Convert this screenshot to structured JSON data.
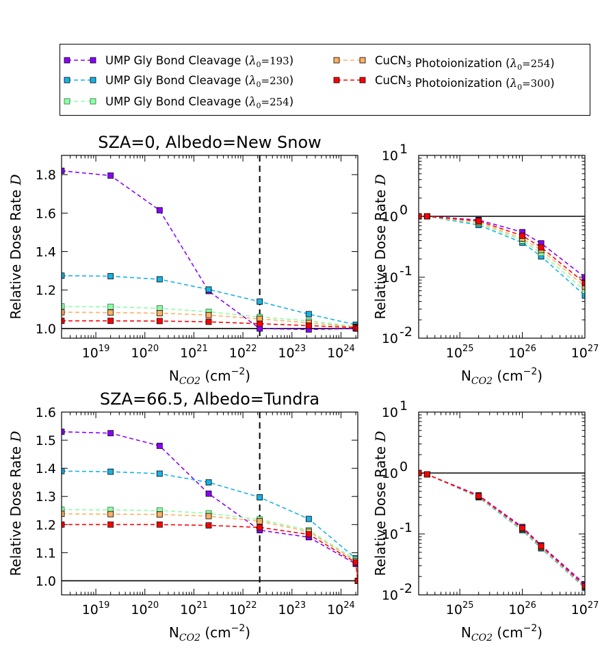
{
  "series": [
    {
      "name": "UMP Gly Bond Cleavage",
      "lambda": "193",
      "color": "#8B00FF",
      "light": false
    },
    {
      "name": "UMP Gly Bond Cleavage",
      "lambda": "230",
      "color": "#17B2E6",
      "light": false
    },
    {
      "name": "UMP Gly Bond Cleavage",
      "lambda": "254",
      "color": "#8CFFA8",
      "light": true
    },
    {
      "name": "CuCN3 Photoionization",
      "lambda": "254",
      "color": "#FFB062",
      "light": false
    },
    {
      "name": "CuCN3 Photoionization",
      "lambda": "300",
      "color": "#FF0000",
      "light": false
    }
  ],
  "labels": {
    "ylabel": "Relative Dose Rate",
    "ylabel_sym": "D",
    "xlabel_main": "N",
    "xlabel_sub": "CO2",
    "xlabel_unit": "(cm",
    "xlabel_exp": "−2",
    "xlabel_close": ")",
    "lambda_sym": "λ",
    "lambda_sub": "0",
    "eq": "=",
    "log_base": "10"
  },
  "chart_data": [
    {
      "id": "top-left",
      "type": "line",
      "title": "SZA=0, Albedo=New Snow",
      "xscale": "log",
      "xlim": [
        2e+18,
        2.2e+24
      ],
      "ylim": [
        0.95,
        1.9
      ],
      "yticks": [
        "1.0",
        "1.2",
        "1.4",
        "1.6",
        "1.8"
      ],
      "ytick_values": [
        1.0,
        1.2,
        1.4,
        1.6,
        1.8
      ],
      "xtick_exps": [
        "19",
        "20",
        "21",
        "22",
        "23",
        "24"
      ],
      "xtick_values": [
        1e+19,
        1e+20,
        1e+21,
        1e+22,
        1e+23,
        1e+24
      ],
      "hline": 1.0,
      "vline": 2.2e+22,
      "x": [
        2e+18,
        2e+19,
        2e+20,
        2e+21,
        2.2e+22,
        2.2e+23,
        2e+24,
        2.2e+24
      ],
      "values": [
        [
          1.82,
          1.795,
          1.615,
          1.195,
          1.0,
          0.995,
          1.0,
          1.0
        ],
        [
          1.275,
          1.272,
          1.256,
          1.203,
          1.14,
          1.075,
          1.02,
          1.0
        ],
        [
          1.115,
          1.113,
          1.105,
          1.087,
          1.06,
          1.04,
          1.01,
          1.0
        ],
        [
          1.085,
          1.083,
          1.08,
          1.07,
          1.05,
          1.03,
          1.008,
          1.0
        ],
        [
          1.04,
          1.04,
          1.039,
          1.035,
          1.025,
          1.015,
          1.005,
          1.0
        ]
      ]
    },
    {
      "id": "top-right",
      "type": "line",
      "xscale": "log",
      "yscale": "log",
      "xlim": [
        2.2e+24,
        1e+27
      ],
      "ylim": [
        0.01,
        10
      ],
      "yticks_exp": [
        "-2",
        "-1",
        "0",
        "1"
      ],
      "ytick_values": [
        0.01,
        0.1,
        1,
        10
      ],
      "xtick_exps": [
        "25",
        "26",
        "27"
      ],
      "xtick_values": [
        1e+25,
        1e+26,
        1e+27
      ],
      "hline": 1.0,
      "x": [
        2.2e+24,
        3e+24,
        2e+25,
        1e+26,
        2e+26,
        1e+27
      ],
      "values": [
        [
          1.0,
          1.0,
          0.87,
          0.55,
          0.36,
          0.1
        ],
        [
          1.0,
          1.0,
          0.72,
          0.37,
          0.22,
          0.05
        ],
        [
          1.0,
          1.0,
          0.77,
          0.4,
          0.25,
          0.06
        ],
        [
          1.0,
          1.0,
          0.8,
          0.43,
          0.28,
          0.07
        ],
        [
          1.0,
          1.0,
          0.84,
          0.48,
          0.31,
          0.08
        ]
      ]
    },
    {
      "id": "bottom-left",
      "type": "line",
      "title": "SZA=66.5, Albedo=Tundra",
      "xscale": "log",
      "xlim": [
        2e+18,
        2.2e+24
      ],
      "ylim": [
        0.95,
        1.6
      ],
      "yticks": [
        "1.0",
        "1.1",
        "1.2",
        "1.3",
        "1.4",
        "1.5",
        "1.6"
      ],
      "ytick_values": [
        1.0,
        1.1,
        1.2,
        1.3,
        1.4,
        1.5,
        1.6
      ],
      "xtick_exps": [
        "19",
        "20",
        "21",
        "22",
        "23",
        "24"
      ],
      "xtick_values": [
        1e+19,
        1e+20,
        1e+21,
        1e+22,
        1e+23,
        1e+24
      ],
      "hline": 1.0,
      "vline": 2.2e+22,
      "x": [
        2e+18,
        2e+19,
        2e+20,
        2e+21,
        2.2e+22,
        2.2e+23,
        2e+24,
        2.2e+24
      ],
      "values": [
        [
          1.53,
          1.525,
          1.48,
          1.31,
          1.18,
          1.155,
          1.06,
          1.0
        ],
        [
          1.39,
          1.388,
          1.381,
          1.35,
          1.297,
          1.22,
          1.08,
          1.0
        ],
        [
          1.253,
          1.252,
          1.25,
          1.24,
          1.218,
          1.18,
          1.075,
          1.0
        ],
        [
          1.238,
          1.237,
          1.236,
          1.23,
          1.212,
          1.175,
          1.07,
          1.0
        ],
        [
          1.2,
          1.2,
          1.2,
          1.197,
          1.19,
          1.165,
          1.065,
          1.0
        ]
      ]
    },
    {
      "id": "bottom-right",
      "type": "line",
      "xscale": "log",
      "yscale": "log",
      "xlim": [
        2.2e+24,
        1e+27
      ],
      "ylim": [
        0.01,
        10
      ],
      "yticks_exp": [
        "-2",
        "-1",
        "0",
        "1"
      ],
      "ytick_values": [
        0.01,
        0.1,
        1,
        10
      ],
      "xtick_exps": [
        "25",
        "26",
        "27"
      ],
      "xtick_values": [
        1e+25,
        1e+26,
        1e+27
      ],
      "hline": 1.0,
      "x": [
        2.2e+24,
        3e+24,
        2e+25,
        1e+26,
        2e+26,
        1e+27
      ],
      "values": [
        [
          1.0,
          0.95,
          0.43,
          0.13,
          0.065,
          0.015
        ],
        [
          1.0,
          0.95,
          0.4,
          0.115,
          0.058,
          0.013
        ],
        [
          1.0,
          0.95,
          0.41,
          0.12,
          0.06,
          0.0135
        ],
        [
          1.0,
          0.95,
          0.41,
          0.122,
          0.061,
          0.0137
        ],
        [
          1.0,
          0.95,
          0.42,
          0.125,
          0.063,
          0.014
        ]
      ]
    }
  ]
}
